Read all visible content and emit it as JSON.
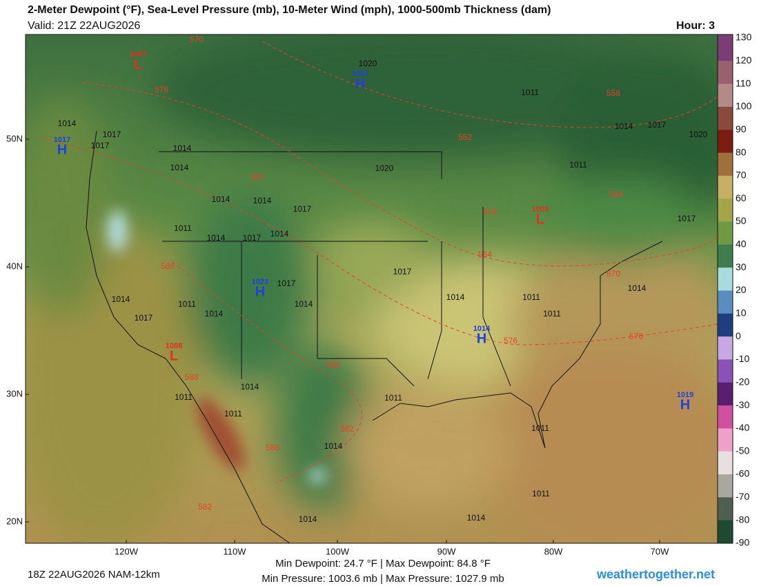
{
  "header": {
    "title": "2-Meter Dewpoint (°F), Sea-Level Pressure (mb), 10-Meter Wind (mph), 1000-500mb Thickness (dam)",
    "valid": "Valid: 21Z 22AUG2026",
    "hour": "Hour: 3"
  },
  "colorbar": {
    "ticks": [
      130,
      120,
      110,
      100,
      90,
      80,
      70,
      60,
      50,
      40,
      30,
      20,
      10,
      0,
      -10,
      -20,
      -30,
      -40,
      -50,
      -60,
      -70,
      -80,
      -90
    ],
    "colors": [
      "#7a3e74",
      "#9a6070",
      "#b48a86",
      "#8a4a3a",
      "#7a1e12",
      "#a0703c",
      "#c6ae62",
      "#a4a448",
      "#6e9a44",
      "#3e7e4e",
      "#a8dcdc",
      "#5a8cc0",
      "#1e3e80",
      "#c8a8e4",
      "#8a52b4",
      "#5a1e70",
      "#d050a0",
      "#f0a0c8",
      "#e8e0e0",
      "#a8a8a0",
      "#4e5e50",
      "#1e4a32"
    ]
  },
  "lat_labels": [
    "50N",
    "40N",
    "30N",
    "20N"
  ],
  "lon_labels": [
    "120W",
    "110W",
    "100W",
    "90W",
    "80W",
    "70W"
  ],
  "centers": [
    {
      "kind": "L",
      "pressure": 1007,
      "color": "#e03020"
    },
    {
      "kind": "H",
      "pressure": 1017,
      "color": "#2040e0"
    },
    {
      "kind": "H",
      "pressure": 1021,
      "color": "#2040e0"
    },
    {
      "kind": "L",
      "pressure": 1009,
      "color": "#e03020"
    },
    {
      "kind": "H",
      "pressure": 1023,
      "color": "#2040e0"
    },
    {
      "kind": "H",
      "pressure": 1014,
      "color": "#2040e0"
    },
    {
      "kind": "L",
      "pressure": 1008,
      "color": "#e03020"
    },
    {
      "kind": "H",
      "pressure": 1019,
      "color": "#2040e0"
    }
  ],
  "thickness_labels": [
    570,
    576,
    558,
    552,
    582,
    564,
    558,
    564,
    588,
    570,
    576,
    576,
    588,
    582,
    588,
    582,
    588
  ],
  "pressure_labels": [
    1020,
    1011,
    1014,
    1017,
    1017,
    1014,
    1014,
    1020,
    1011,
    1014,
    1017,
    1020,
    1014,
    1014,
    1017,
    1011,
    1014,
    1017,
    1014,
    1017,
    1017,
    1014,
    1011,
    1011,
    1014,
    1014,
    1011,
    1014,
    1014,
    1017,
    1017,
    1014,
    1011,
    1011,
    1011,
    1011,
    1014,
    1014,
    1014,
    1011
  ],
  "footer": {
    "run": "18Z 22AUG2026 NAM-12km",
    "dewpoint": "Min Dewpoint:  24.7 °F | Max Dewpoint:  84.8 °F",
    "pressure": "Min Pressure: 1003.6 mb | Max Pressure: 1027.9 mb",
    "site": "weathertogether.net"
  }
}
